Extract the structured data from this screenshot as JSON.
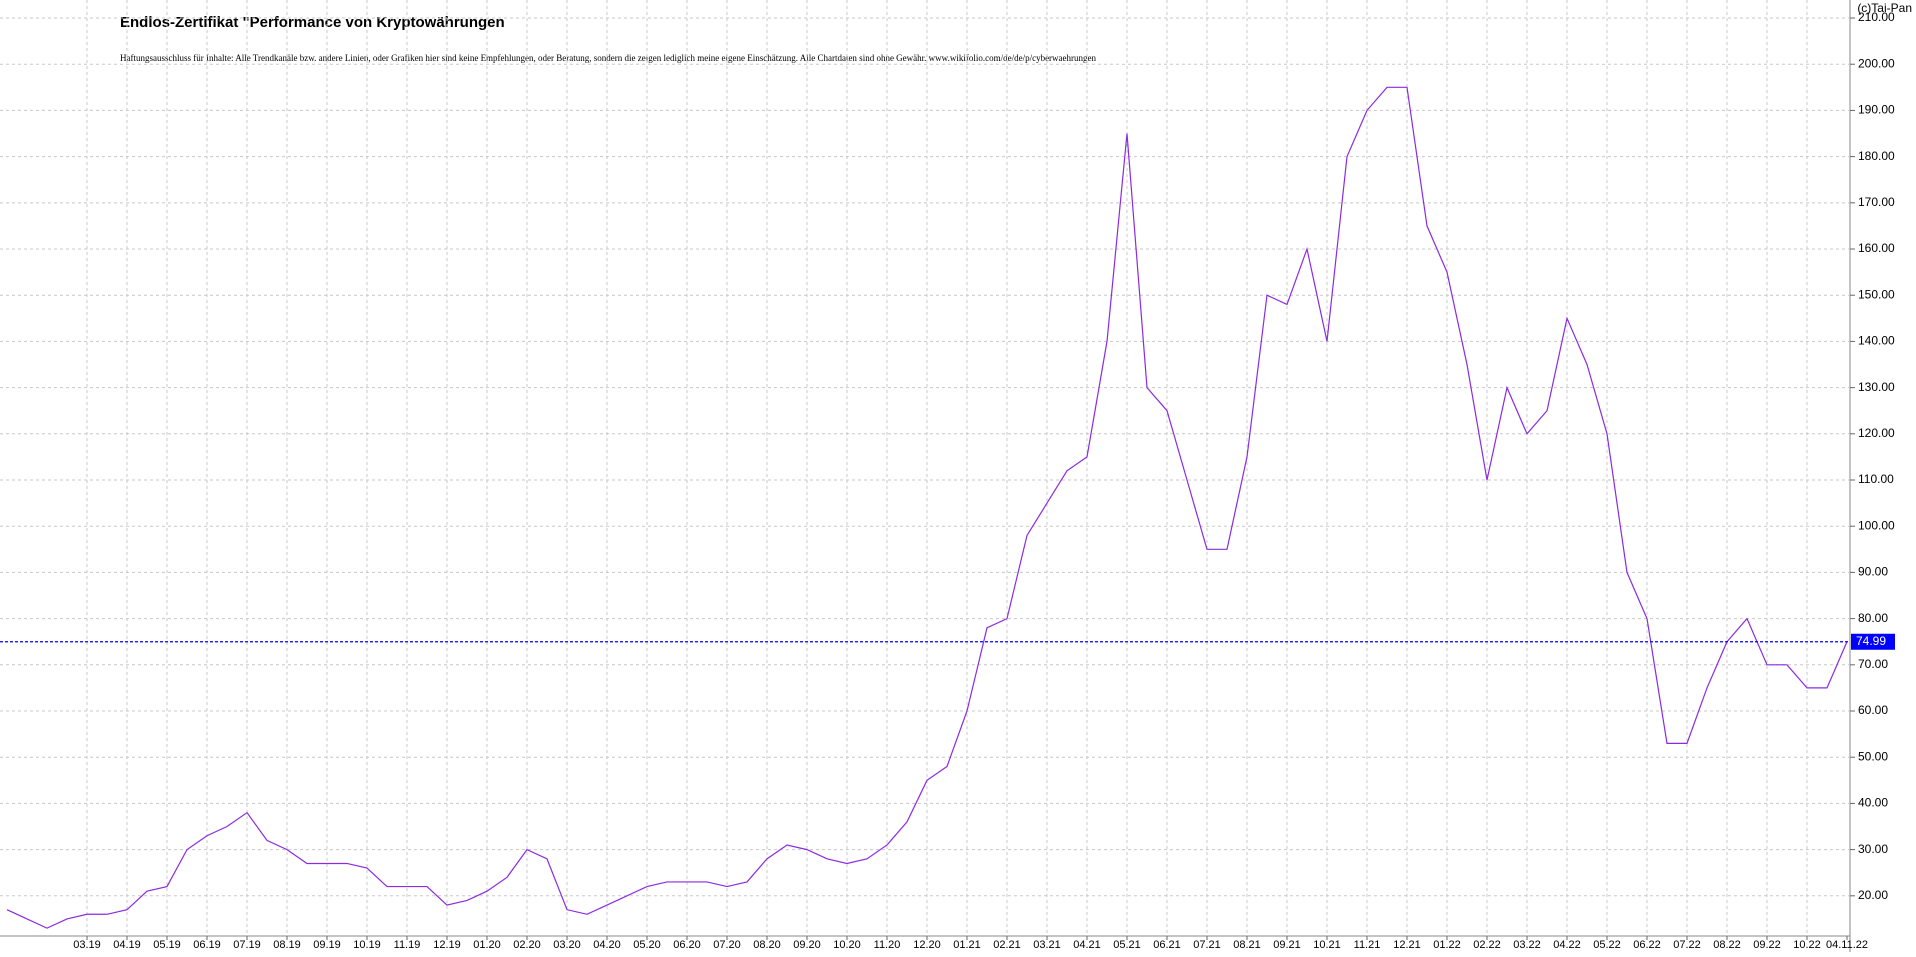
{
  "chart_data": {
    "type": "line",
    "title": "Endlos-Zertifikat \"Performance von Kryptowährungen",
    "subtitle": "Haftungsausschluss für Inhalte: Alle Trendkanäle bzw. andere Linien, oder Grafiken hier sind keine Empfehlungen, oder Beratung, sondern die zeigen lediglich meine eigene Einschätzung. Alle Chartdaten sind ohne Gewähr.  www.wikifolio.com/de/de/p/cyberwaehrungen",
    "source": "(c)Tai-Pan",
    "categories": [
      null,
      null,
      null,
      null,
      "03.19",
      null,
      "04.19",
      null,
      "05.19",
      null,
      "06.19",
      null,
      "07.19",
      null,
      "08.19",
      null,
      "09.19",
      null,
      "10.19",
      null,
      "11.19",
      null,
      "12.19",
      null,
      "01.20",
      null,
      "02.20",
      null,
      "03.20",
      null,
      "04.20",
      null,
      "05.20",
      null,
      "06.20",
      null,
      "07.20",
      null,
      "08.20",
      null,
      "09.20",
      null,
      "10.20",
      null,
      "11.20",
      null,
      "12.20",
      null,
      "01.21",
      null,
      "02.21",
      null,
      "03.21",
      null,
      "04.21",
      null,
      "05.21",
      null,
      "06.21",
      null,
      "07.21",
      null,
      "08.21",
      null,
      "09.21",
      null,
      "10.21",
      null,
      "11.21",
      null,
      "12.21",
      null,
      "01.22",
      null,
      "02.22",
      null,
      "03.22",
      null,
      "04.22",
      null,
      "05.22",
      null,
      "06.22",
      null,
      "07.22",
      null,
      "08.22",
      null,
      "09.22",
      null,
      "10.22",
      null,
      "04.11.22"
    ],
    "series": [
      {
        "name": "Endlos-Zertifikat",
        "color": "#8a2be2",
        "values": [
          17,
          15,
          13,
          15,
          16,
          16,
          17,
          21,
          22,
          30,
          33,
          35,
          38,
          32,
          30,
          27,
          27,
          27,
          26,
          22,
          22,
          22,
          18,
          19,
          21,
          24,
          30,
          28,
          17,
          16,
          18,
          20,
          22,
          23,
          23,
          23,
          22,
          23,
          28,
          31,
          30,
          28,
          27,
          28,
          31,
          36,
          45,
          48,
          60,
          78,
          80,
          98,
          105,
          112,
          115,
          140,
          185,
          130,
          125,
          110,
          95,
          95,
          115,
          150,
          148,
          160,
          140,
          180,
          190,
          195,
          195,
          165,
          155,
          135,
          110,
          130,
          120,
          125,
          145,
          135,
          120,
          90,
          80,
          53,
          53,
          65,
          75,
          80,
          70,
          70,
          65,
          65,
          74.99
        ]
      }
    ],
    "ylim": [
      11.3,
      213.9
    ],
    "yticks": [
      {
        "value": 20,
        "label": "20.00"
      },
      {
        "value": 30,
        "label": "30.00"
      },
      {
        "value": 40,
        "label": "40.00"
      },
      {
        "value": 50,
        "label": "50.00"
      },
      {
        "value": 60,
        "label": "60.00"
      },
      {
        "value": 70,
        "label": "70.00"
      },
      {
        "value": 80,
        "label": "80.00"
      },
      {
        "value": 90,
        "label": "90.00"
      },
      {
        "value": 100,
        "label": "100.00"
      },
      {
        "value": 110,
        "label": "110.00"
      },
      {
        "value": 120,
        "label": "120.00"
      },
      {
        "value": 130,
        "label": "130.00"
      },
      {
        "value": 140,
        "label": "140.00"
      },
      {
        "value": 150,
        "label": "150.00"
      },
      {
        "value": 160,
        "label": "160.00"
      },
      {
        "value": 170,
        "label": "170.00"
      },
      {
        "value": 180,
        "label": "180.00"
      },
      {
        "value": 190,
        "label": "190.00"
      },
      {
        "value": 200,
        "label": "200.00"
      },
      {
        "value": 210,
        "label": "210.00"
      }
    ],
    "grid": true,
    "current_line_color": "#0000ff"
  }
}
